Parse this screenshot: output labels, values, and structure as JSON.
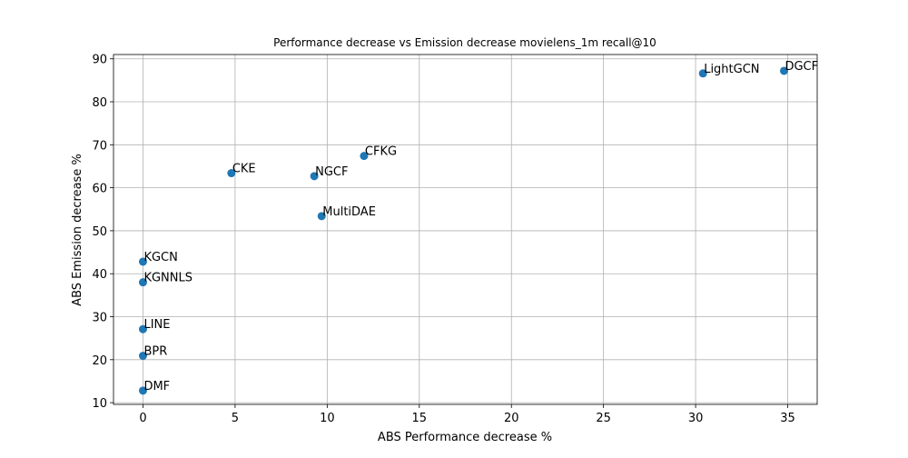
{
  "chart_data": {
    "type": "scatter",
    "title": "Performance decrease vs Emission decrease movielens_1m recall@10",
    "xlabel": "ABS Performance decrease %",
    "ylabel": "ABS Emission decrease %",
    "xlim": [
      -1.6,
      36.6
    ],
    "ylim": [
      9.6,
      91.0
    ],
    "xticks": [
      0,
      5,
      10,
      15,
      20,
      25,
      30,
      35
    ],
    "yticks": [
      10,
      20,
      30,
      40,
      50,
      60,
      70,
      80,
      90
    ],
    "grid": true,
    "color": "#1f77b4",
    "points": [
      {
        "label": "DGCF",
        "x": 34.8,
        "y": 87.2
      },
      {
        "label": "LightGCN",
        "x": 30.4,
        "y": 86.6
      },
      {
        "label": "CFKG",
        "x": 12.0,
        "y": 67.4
      },
      {
        "label": "CKE",
        "x": 4.8,
        "y": 63.4
      },
      {
        "label": "NGCF",
        "x": 9.3,
        "y": 62.7
      },
      {
        "label": "MultiDAE",
        "x": 9.7,
        "y": 53.4
      },
      {
        "label": "KGCN",
        "x": 0.0,
        "y": 42.8
      },
      {
        "label": "KGNNLS",
        "x": 0.0,
        "y": 38.0
      },
      {
        "label": "LINE",
        "x": 0.0,
        "y": 27.1
      },
      {
        "label": "BPR",
        "x": 0.0,
        "y": 20.9
      },
      {
        "label": "DMF",
        "x": 0.0,
        "y": 12.8
      }
    ]
  }
}
